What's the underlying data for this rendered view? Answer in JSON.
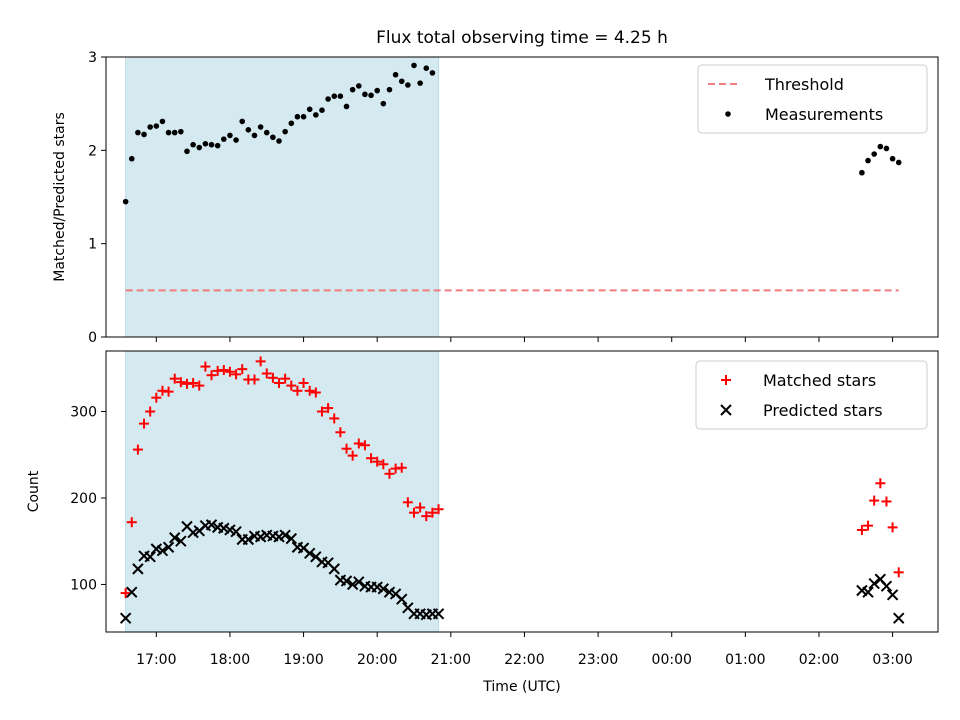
{
  "title": "Flux total observing time = 4.25 h",
  "xlabel": "Time (UTC)",
  "x_ticks": [
    "17:00",
    "18:00",
    "19:00",
    "20:00",
    "21:00",
    "22:00",
    "23:00",
    "00:00",
    "01:00",
    "02:00",
    "03:00"
  ],
  "colors": {
    "shade": "#d4eaf0",
    "threshold": "#f07c7c",
    "measurements": "#000000",
    "matched": "#ff0000",
    "predicted": "#000000"
  },
  "chart_data": [
    {
      "type": "scatter",
      "ylabel": "Matched/Predicted stars",
      "ylim": [
        0,
        3
      ],
      "yticks": [
        "0",
        "1",
        "2",
        "3"
      ],
      "xlim": [
        "16:19",
        "03:37"
      ],
      "shaded_interval": [
        "16:35",
        "20:50"
      ],
      "legend": {
        "placement": "top-right",
        "entries": [
          "Threshold",
          "Measurements"
        ]
      },
      "series": [
        {
          "name": "Threshold",
          "kind": "dashed-line",
          "x": [
            "16:35",
            "03:05"
          ],
          "y": [
            0.5,
            0.5
          ]
        },
        {
          "name": "Measurements",
          "kind": "dots",
          "points": [
            [
              "16:35",
              1.45
            ],
            [
              "16:40",
              1.91
            ],
            [
              "16:45",
              2.19
            ],
            [
              "16:50",
              2.17
            ],
            [
              "16:55",
              2.25
            ],
            [
              "17:00",
              2.26
            ],
            [
              "17:05",
              2.31
            ],
            [
              "17:10",
              2.19
            ],
            [
              "17:15",
              2.19
            ],
            [
              "17:20",
              2.2
            ],
            [
              "17:25",
              1.99
            ],
            [
              "17:30",
              2.06
            ],
            [
              "17:35",
              2.03
            ],
            [
              "17:40",
              2.07
            ],
            [
              "17:45",
              2.06
            ],
            [
              "17:50",
              2.05
            ],
            [
              "17:55",
              2.12
            ],
            [
              "18:00",
              2.16
            ],
            [
              "18:05",
              2.11
            ],
            [
              "18:10",
              2.31
            ],
            [
              "18:15",
              2.22
            ],
            [
              "18:20",
              2.16
            ],
            [
              "18:25",
              2.25
            ],
            [
              "18:30",
              2.19
            ],
            [
              "18:35",
              2.14
            ],
            [
              "18:40",
              2.1
            ],
            [
              "18:45",
              2.2
            ],
            [
              "18:50",
              2.29
            ],
            [
              "18:55",
              2.36
            ],
            [
              "19:00",
              2.36
            ],
            [
              "19:05",
              2.44
            ],
            [
              "19:10",
              2.38
            ],
            [
              "19:15",
              2.43
            ],
            [
              "19:20",
              2.55
            ],
            [
              "19:25",
              2.58
            ],
            [
              "19:30",
              2.58
            ],
            [
              "19:35",
              2.47
            ],
            [
              "19:40",
              2.65
            ],
            [
              "19:45",
              2.69
            ],
            [
              "19:50",
              2.6
            ],
            [
              "19:55",
              2.59
            ],
            [
              "20:00",
              2.64
            ],
            [
              "20:05",
              2.5
            ],
            [
              "20:10",
              2.65
            ],
            [
              "20:15",
              2.81
            ],
            [
              "20:20",
              2.74
            ],
            [
              "20:25",
              2.7
            ],
            [
              "20:30",
              2.91
            ],
            [
              "20:35",
              2.72
            ],
            [
              "20:40",
              2.88
            ],
            [
              "20:45",
              2.83
            ],
            [
              "02:35",
              1.76
            ],
            [
              "02:40",
              1.89
            ],
            [
              "02:45",
              1.96
            ],
            [
              "02:50",
              2.04
            ],
            [
              "02:55",
              2.02
            ],
            [
              "03:00",
              1.91
            ],
            [
              "03:05",
              1.87
            ]
          ]
        }
      ]
    },
    {
      "type": "scatter",
      "ylabel": "Count",
      "ylim": [
        45,
        370
      ],
      "yticks": [
        "100",
        "200",
        "300"
      ],
      "xlim": [
        "16:19",
        "03:37"
      ],
      "shaded_interval": [
        "16:35",
        "20:50"
      ],
      "legend": {
        "placement": "top-right",
        "entries": [
          "Matched stars",
          "Predicted stars"
        ]
      },
      "series": [
        {
          "name": "Matched stars",
          "marker": "+",
          "points": [
            [
              "16:35",
              90
            ],
            [
              "16:40",
              172
            ],
            [
              "16:45",
              256
            ],
            [
              "16:50",
              286
            ],
            [
              "16:55",
              300
            ],
            [
              "17:00",
              316
            ],
            [
              "17:05",
              324
            ],
            [
              "17:10",
              323
            ],
            [
              "17:15",
              338
            ],
            [
              "17:20",
              334
            ],
            [
              "17:25",
              332
            ],
            [
              "17:30",
              333
            ],
            [
              "17:35",
              330
            ],
            [
              "17:40",
              352
            ],
            [
              "17:45",
              342
            ],
            [
              "17:50",
              347
            ],
            [
              "17:55",
              348
            ],
            [
              "18:00",
              346
            ],
            [
              "18:05",
              343
            ],
            [
              "18:10",
              349
            ],
            [
              "18:15",
              337
            ],
            [
              "18:20",
              337
            ],
            [
              "18:25",
              358
            ],
            [
              "18:30",
              344
            ],
            [
              "18:35",
              339
            ],
            [
              "18:40",
              333
            ],
            [
              "18:45",
              338
            ],
            [
              "18:50",
              330
            ],
            [
              "18:55",
              324
            ],
            [
              "19:00",
              333
            ],
            [
              "19:05",
              324
            ],
            [
              "19:10",
              322
            ],
            [
              "19:15",
              300
            ],
            [
              "19:20",
              304
            ],
            [
              "19:25",
              292
            ],
            [
              "19:30",
              276
            ],
            [
              "19:35",
              257
            ],
            [
              "19:40",
              249
            ],
            [
              "19:45",
              263
            ],
            [
              "19:50",
              261
            ],
            [
              "19:55",
              246
            ],
            [
              "20:00",
              242
            ],
            [
              "20:05",
              239
            ],
            [
              "20:10",
              228
            ],
            [
              "20:15",
              234
            ],
            [
              "20:20",
              235
            ],
            [
              "20:25",
              195
            ],
            [
              "20:30",
              183
            ],
            [
              "20:35",
              189
            ],
            [
              "20:40",
              179
            ],
            [
              "20:45",
              183
            ],
            [
              "20:50",
              187
            ],
            [
              "02:35",
              163
            ],
            [
              "02:40",
              168
            ],
            [
              "02:45",
              197
            ],
            [
              "02:50",
              217
            ],
            [
              "02:55",
              196
            ],
            [
              "03:00",
              166
            ],
            [
              "03:05",
              114
            ]
          ]
        },
        {
          "name": "Predicted stars",
          "marker": "x",
          "points": [
            [
              "16:35",
              61
            ],
            [
              "16:40",
              91
            ],
            [
              "16:45",
              118
            ],
            [
              "16:50",
              133
            ],
            [
              "16:55",
              132
            ],
            [
              "17:00",
              141
            ],
            [
              "17:05",
              139
            ],
            [
              "17:10",
              143
            ],
            [
              "17:15",
              154
            ],
            [
              "17:20",
              150
            ],
            [
              "17:25",
              167
            ],
            [
              "17:30",
              160
            ],
            [
              "17:35",
              162
            ],
            [
              "17:40",
              168
            ],
            [
              "17:45",
              169
            ],
            [
              "17:50",
              166
            ],
            [
              "17:55",
              165
            ],
            [
              "18:00",
              163
            ],
            [
              "18:05",
              161
            ],
            [
              "18:10",
              152
            ],
            [
              "18:15",
              152
            ],
            [
              "18:20",
              156
            ],
            [
              "18:25",
              155
            ],
            [
              "18:30",
              157
            ],
            [
              "18:35",
              156
            ],
            [
              "18:40",
              155
            ],
            [
              "18:45",
              157
            ],
            [
              "18:50",
              153
            ],
            [
              "18:55",
              143
            ],
            [
              "19:00",
              142
            ],
            [
              "19:05",
              136
            ],
            [
              "19:10",
              132
            ],
            [
              "19:15",
              126
            ],
            [
              "19:20",
              125
            ],
            [
              "19:25",
              118
            ],
            [
              "19:30",
              105
            ],
            [
              "19:35",
              104
            ],
            [
              "19:40",
              100
            ],
            [
              "19:45",
              103
            ],
            [
              "19:50",
              98
            ],
            [
              "19:55",
              97
            ],
            [
              "20:00",
              97
            ],
            [
              "20:05",
              95
            ],
            [
              "20:10",
              91
            ],
            [
              "20:15",
              89
            ],
            [
              "20:20",
              83
            ],
            [
              "20:25",
              73
            ],
            [
              "20:30",
              66
            ],
            [
              "20:35",
              66
            ],
            [
              "20:40",
              65
            ],
            [
              "20:45",
              66
            ],
            [
              "20:50",
              66
            ],
            [
              "02:35",
              93
            ],
            [
              "02:40",
              91
            ],
            [
              "02:45",
              101
            ],
            [
              "02:50",
              106
            ],
            [
              "02:55",
              98
            ],
            [
              "03:00",
              88
            ],
            [
              "03:05",
              61
            ]
          ]
        }
      ]
    }
  ]
}
